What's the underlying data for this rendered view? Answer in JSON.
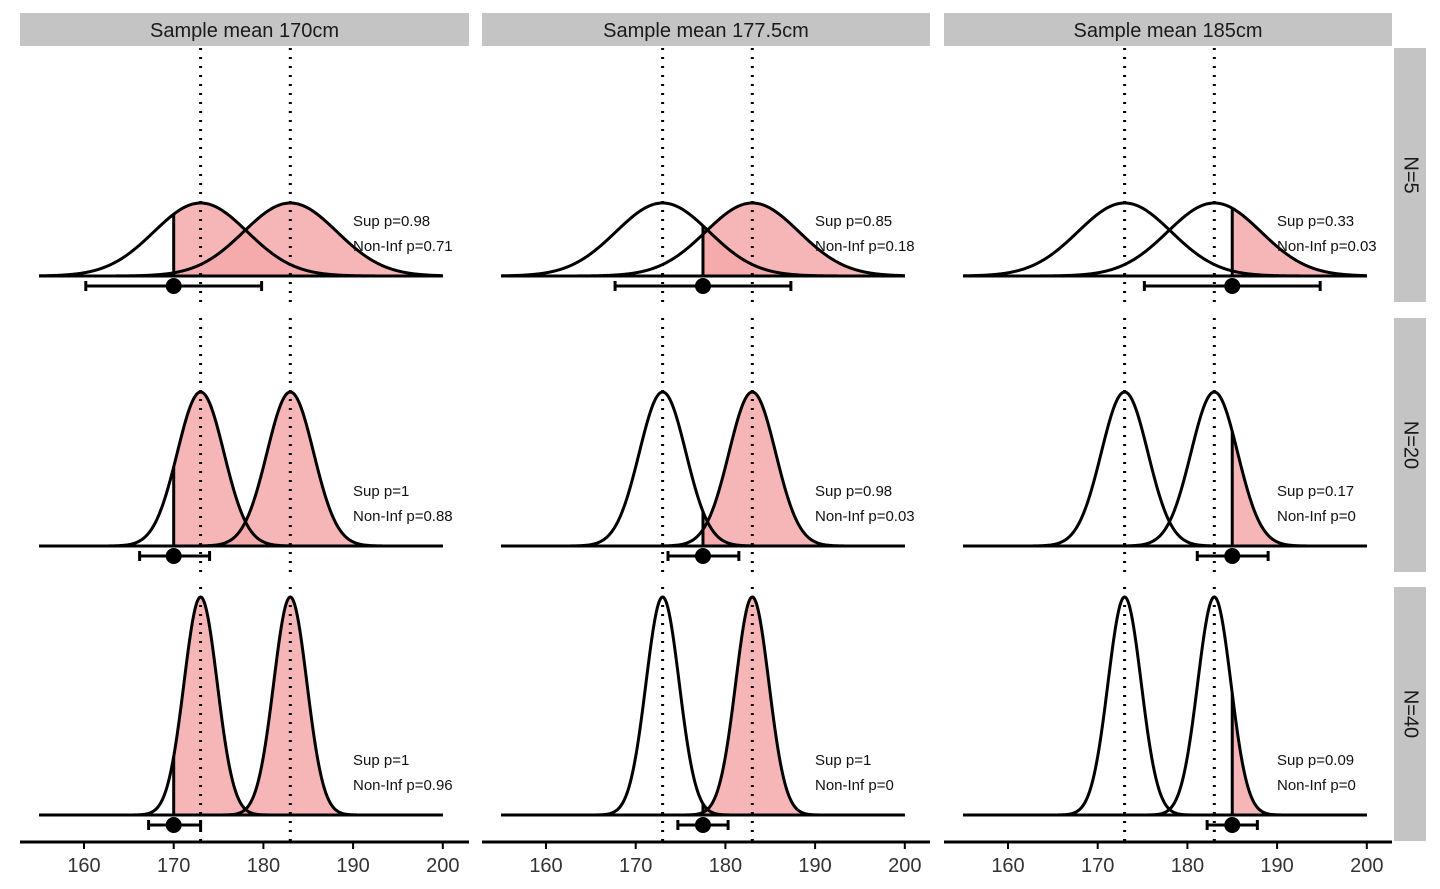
{
  "chart_data": {
    "type": "area",
    "x_range": [
      155,
      200
    ],
    "x_ticks": [
      160,
      170,
      180,
      190,
      200
    ],
    "reference_lines": [
      173,
      183
    ],
    "fill_color": "#f4a9aa",
    "facet_columns": [
      {
        "label": "Sample mean 170cm",
        "sample_mean": 170
      },
      {
        "label": "Sample mean 177.5cm",
        "sample_mean": 177.5
      },
      {
        "label": "Sample mean 185cm",
        "sample_mean": 185
      }
    ],
    "facet_rows": [
      {
        "label": "N=5",
        "n": 5,
        "sd": 5.2
      },
      {
        "label": "N=20",
        "n": 20,
        "sd": 2.6
      },
      {
        "label": "N=40",
        "n": 40,
        "sd": 1.85
      }
    ],
    "panels": [
      {
        "row": 0,
        "col": 0,
        "sup": "Sup p=0.98",
        "noninf": "Non-Inf p=0.71",
        "ci": [
          160.2,
          179.8
        ]
      },
      {
        "row": 0,
        "col": 1,
        "sup": "Sup p=0.85",
        "noninf": "Non-Inf p=0.18",
        "ci": [
          167.7,
          187.3
        ]
      },
      {
        "row": 0,
        "col": 2,
        "sup": "Sup p=0.33",
        "noninf": "Non-Inf p=0.03",
        "ci": [
          175.2,
          194.8
        ]
      },
      {
        "row": 1,
        "col": 0,
        "sup": "Sup p=1",
        "noninf": "Non-Inf p=0.88",
        "ci": [
          166.2,
          174.0
        ]
      },
      {
        "row": 1,
        "col": 1,
        "sup": "Sup p=0.98",
        "noninf": "Non-Inf p=0.03",
        "ci": [
          173.6,
          181.5
        ]
      },
      {
        "row": 1,
        "col": 2,
        "sup": "Sup p=0.17",
        "noninf": "Non-Inf p=0",
        "ci": [
          181.1,
          189.0
        ]
      },
      {
        "row": 2,
        "col": 0,
        "sup": "Sup p=1",
        "noninf": "Non-Inf p=0.96",
        "ci": [
          167.2,
          173.0
        ]
      },
      {
        "row": 2,
        "col": 1,
        "sup": "Sup p=1",
        "noninf": "Non-Inf p=0",
        "ci": [
          174.7,
          180.3
        ]
      },
      {
        "row": 2,
        "col": 2,
        "sup": "Sup p=0.09",
        "noninf": "Non-Inf p=0",
        "ci": [
          182.2,
          187.8
        ]
      }
    ]
  }
}
